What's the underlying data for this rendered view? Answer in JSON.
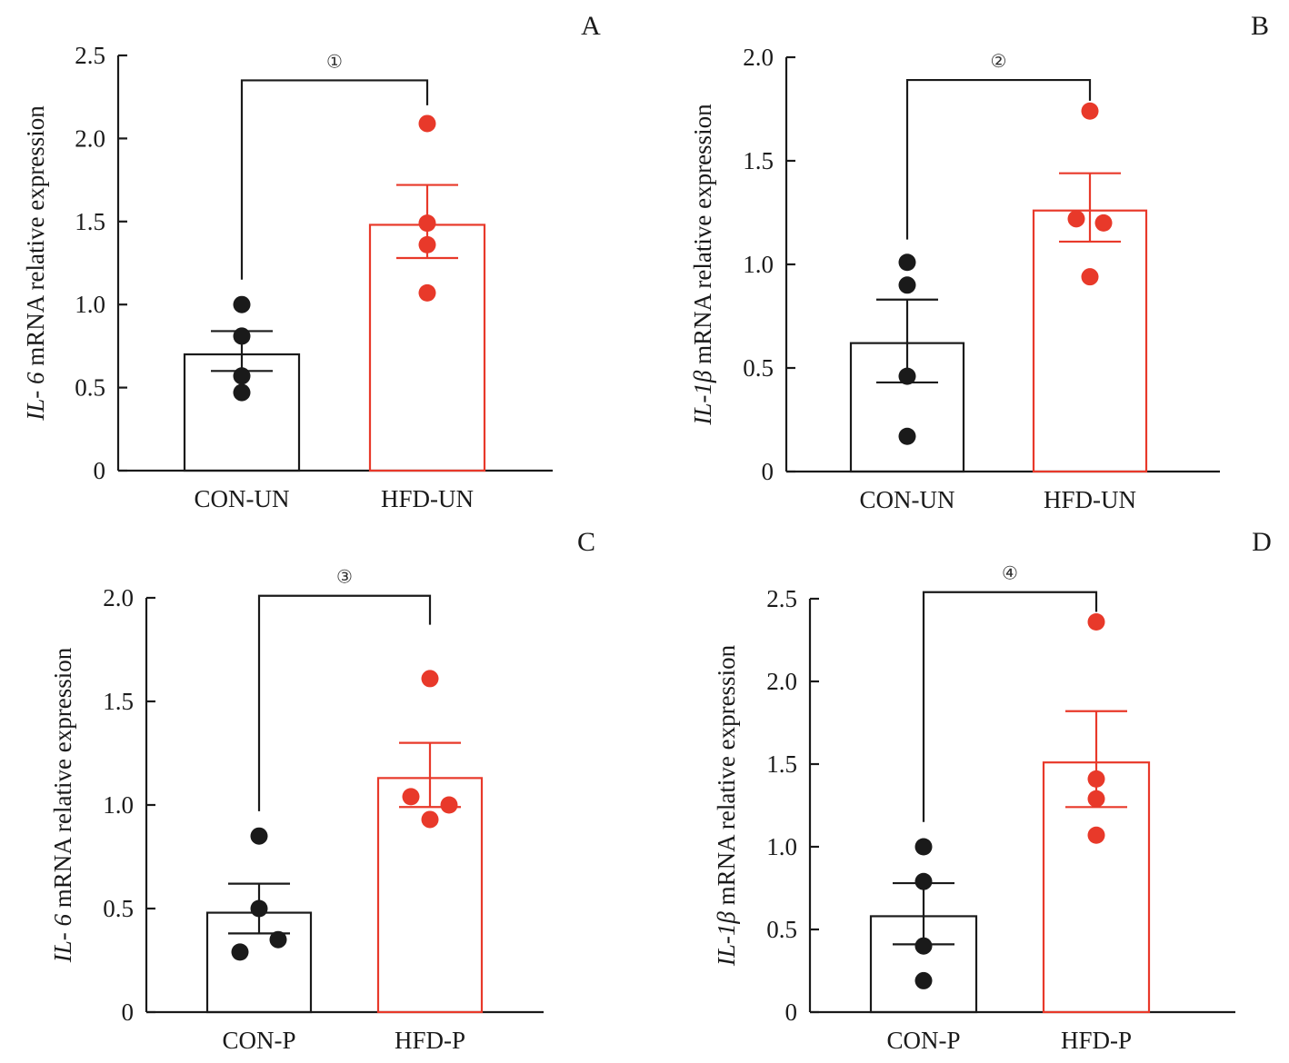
{
  "colors": {
    "control": "#1a1a1a",
    "treatment": "#e8392a",
    "axis": "#1a1a1a"
  },
  "chart_data": [
    {
      "panel": "A",
      "type": "bar",
      "title": "",
      "annotation": "①",
      "xlabel": "",
      "ylabel_italic": "IL- 6",
      "ylabel_rest": " mRNA relative expression",
      "ylim": [
        0,
        2.5
      ],
      "yticks": [
        0,
        0.5,
        1.0,
        1.5,
        2.0,
        2.5
      ],
      "ytick_labels": [
        "0",
        "0.5",
        "1.0",
        "1.5",
        "2.0",
        "2.5"
      ],
      "categories": [
        "CON-UN",
        "HFD-UN"
      ],
      "means": [
        0.7,
        1.48
      ],
      "sem_upper": [
        0.84,
        1.72
      ],
      "sem_lower": [
        0.6,
        1.28
      ],
      "points": [
        [
          1.0,
          0.81,
          0.57,
          0.47
        ],
        [
          2.09,
          1.49,
          1.36,
          1.07
        ]
      ],
      "point_offsets": [
        [
          0,
          0,
          0,
          0
        ],
        [
          0,
          0,
          0,
          0
        ]
      ],
      "bracket_level": 2.35,
      "bracket_ends": [
        1.15,
        2.2
      ],
      "grid": false,
      "legend": "none"
    },
    {
      "panel": "B",
      "type": "bar",
      "title": "",
      "annotation": "②",
      "xlabel": "",
      "ylabel_italic": "IL-1β",
      "ylabel_rest": " mRNA relative expression",
      "ylim": [
        0,
        2.0
      ],
      "yticks": [
        0,
        0.5,
        1.0,
        1.5,
        2.0
      ],
      "ytick_labels": [
        "0",
        "0.5",
        "1.0",
        "1.5",
        "2.0"
      ],
      "categories": [
        "CON-UN",
        "HFD-UN"
      ],
      "means": [
        0.62,
        1.26
      ],
      "sem_upper": [
        0.83,
        1.44
      ],
      "sem_lower": [
        0.43,
        1.11
      ],
      "points": [
        [
          1.01,
          0.9,
          0.46,
          0.17
        ],
        [
          1.74,
          1.22,
          1.2,
          0.94
        ]
      ],
      "point_offsets": [
        [
          0,
          0,
          0,
          0
        ],
        [
          0,
          -0.25,
          0.25,
          0
        ]
      ],
      "bracket_level": 1.89,
      "bracket_ends": [
        1.12,
        1.79
      ],
      "grid": false,
      "legend": "none"
    },
    {
      "panel": "C",
      "type": "bar",
      "title": "",
      "annotation": "③",
      "xlabel": "",
      "ylabel_italic": "IL- 6",
      "ylabel_rest": " mRNA relative expression",
      "ylim": [
        0,
        2.0
      ],
      "yticks": [
        0,
        0.5,
        1.0,
        1.5,
        2.0
      ],
      "ytick_labels": [
        "0",
        "0.5",
        "1.0",
        "1.5",
        "2.0"
      ],
      "categories": [
        "CON-P",
        "HFD-P"
      ],
      "means": [
        0.48,
        1.13
      ],
      "sem_upper": [
        0.62,
        1.3
      ],
      "sem_lower": [
        0.38,
        0.99
      ],
      "points": [
        [
          0.85,
          0.5,
          0.35,
          0.29
        ],
        [
          1.61,
          1.04,
          1.0,
          0.93
        ]
      ],
      "point_offsets": [
        [
          0,
          0,
          0.35,
          -0.35
        ],
        [
          0,
          -0.35,
          0.35,
          0
        ]
      ],
      "bracket_level": 2.01,
      "bracket_ends": [
        0.97,
        1.87
      ],
      "grid": false,
      "legend": "none"
    },
    {
      "panel": "D",
      "type": "bar",
      "title": "",
      "annotation": "④",
      "xlabel": "",
      "ylabel_italic": "IL-1β",
      "ylabel_rest": " mRNA relative expression",
      "ylim": [
        0,
        2.5
      ],
      "yticks": [
        0,
        0.5,
        1.0,
        1.5,
        2.0,
        2.5
      ],
      "ytick_labels": [
        "0",
        "0.5",
        "1.0",
        "1.5",
        "2.0",
        "2.5"
      ],
      "categories": [
        "CON-P",
        "HFD-P"
      ],
      "means": [
        0.58,
        1.51
      ],
      "sem_upper": [
        0.78,
        1.82
      ],
      "sem_lower": [
        0.41,
        1.24
      ],
      "points": [
        [
          1.0,
          0.79,
          0.4,
          0.19
        ],
        [
          2.36,
          1.41,
          1.29,
          1.07
        ]
      ],
      "point_offsets": [
        [
          0,
          0,
          0,
          0
        ],
        [
          0,
          0,
          0,
          0
        ]
      ],
      "bracket_level": 2.54,
      "bracket_ends": [
        1.15,
        2.42
      ],
      "grid": false,
      "legend": "none"
    }
  ]
}
